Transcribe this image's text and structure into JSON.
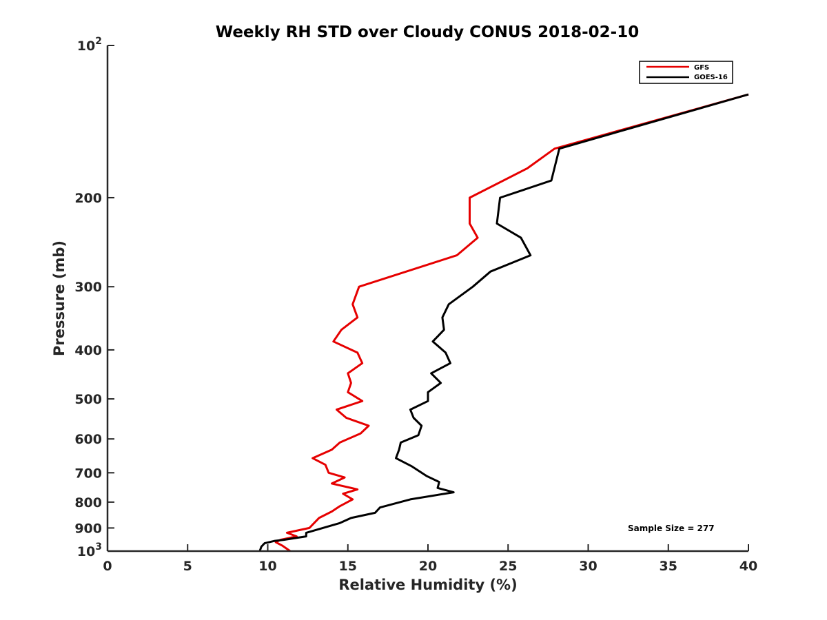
{
  "chart_data": {
    "type": "line",
    "title": "Weekly RH STD over Cloudy CONUS 2018-02-10",
    "xlabel": "Relative Humidity (%)",
    "ylabel": "Pressure (mb)",
    "xlim": [
      0,
      40
    ],
    "ylim": [
      100,
      1000
    ],
    "y_scale": "log",
    "y_reversed": true,
    "grid": false,
    "legend_position": "top-right",
    "x_ticks": [
      {
        "value": 0,
        "label": "0"
      },
      {
        "value": 5,
        "label": "5"
      },
      {
        "value": 10,
        "label": "10"
      },
      {
        "value": 15,
        "label": "15"
      },
      {
        "value": 20,
        "label": "20"
      },
      {
        "value": 25,
        "label": "25"
      },
      {
        "value": 30,
        "label": "30"
      },
      {
        "value": 35,
        "label": "35"
      },
      {
        "value": 40,
        "label": "40"
      }
    ],
    "y_ticks": [
      {
        "value": 100,
        "base": "10",
        "exp": "2"
      },
      {
        "value": 200,
        "label": "200"
      },
      {
        "value": 300,
        "label": "300"
      },
      {
        "value": 400,
        "label": "400"
      },
      {
        "value": 500,
        "label": "500"
      },
      {
        "value": 600,
        "label": "600"
      },
      {
        "value": 700,
        "label": "700"
      },
      {
        "value": 800,
        "label": "800"
      },
      {
        "value": 900,
        "label": "900"
      },
      {
        "value": 1000,
        "base": "10",
        "exp": "3"
      }
    ],
    "series": [
      {
        "name": "GFS",
        "color": "#e60000",
        "points": [
          [
            40.0,
            125
          ],
          [
            27.9,
            160
          ],
          [
            26.2,
            175
          ],
          [
            22.6,
            200
          ],
          [
            22.6,
            225
          ],
          [
            23.1,
            240
          ],
          [
            21.8,
            260
          ],
          [
            15.7,
            300
          ],
          [
            15.3,
            325
          ],
          [
            15.6,
            345
          ],
          [
            14.6,
            365
          ],
          [
            14.1,
            385
          ],
          [
            15.6,
            405
          ],
          [
            15.9,
            425
          ],
          [
            15.0,
            445
          ],
          [
            15.2,
            465
          ],
          [
            15.0,
            485
          ],
          [
            15.9,
            505
          ],
          [
            14.3,
            525
          ],
          [
            14.9,
            545
          ],
          [
            16.3,
            565
          ],
          [
            15.8,
            585
          ],
          [
            14.5,
            610
          ],
          [
            14.0,
            630
          ],
          [
            12.8,
            655
          ],
          [
            13.6,
            675
          ],
          [
            13.8,
            700
          ],
          [
            14.8,
            715
          ],
          [
            14.0,
            735
          ],
          [
            15.6,
            755
          ],
          [
            14.7,
            770
          ],
          [
            15.3,
            790
          ],
          [
            14.5,
            815
          ],
          [
            14.0,
            835
          ],
          [
            13.2,
            860
          ],
          [
            12.6,
            900
          ],
          [
            11.2,
            920
          ],
          [
            11.8,
            935
          ],
          [
            10.8,
            950
          ],
          [
            10.5,
            960
          ],
          [
            10.9,
            975
          ],
          [
            11.4,
            1000
          ]
        ]
      },
      {
        "name": "GOES-16",
        "color": "#000000",
        "points": [
          [
            40.0,
            125
          ],
          [
            28.2,
            160
          ],
          [
            27.7,
            185
          ],
          [
            24.5,
            200
          ],
          [
            24.3,
            225
          ],
          [
            25.8,
            240
          ],
          [
            26.4,
            260
          ],
          [
            23.9,
            280
          ],
          [
            22.8,
            300
          ],
          [
            21.3,
            325
          ],
          [
            20.9,
            345
          ],
          [
            21.0,
            365
          ],
          [
            20.3,
            385
          ],
          [
            21.1,
            405
          ],
          [
            21.4,
            425
          ],
          [
            20.2,
            445
          ],
          [
            20.8,
            465
          ],
          [
            20.0,
            485
          ],
          [
            20.0,
            505
          ],
          [
            18.9,
            525
          ],
          [
            19.1,
            545
          ],
          [
            19.6,
            565
          ],
          [
            19.4,
            590
          ],
          [
            18.3,
            610
          ],
          [
            18.2,
            630
          ],
          [
            18.0,
            655
          ],
          [
            19.0,
            680
          ],
          [
            19.9,
            710
          ],
          [
            20.7,
            730
          ],
          [
            20.6,
            750
          ],
          [
            21.6,
            765
          ],
          [
            18.9,
            790
          ],
          [
            17.0,
            820
          ],
          [
            16.7,
            840
          ],
          [
            15.2,
            860
          ],
          [
            14.5,
            880
          ],
          [
            12.4,
            920
          ],
          [
            12.4,
            935
          ],
          [
            11.0,
            950
          ],
          [
            10.4,
            955
          ],
          [
            9.8,
            965
          ],
          [
            9.6,
            980
          ],
          [
            9.5,
            1000
          ]
        ]
      }
    ],
    "annotations": [
      {
        "text": "Sample Size = 277"
      }
    ]
  }
}
